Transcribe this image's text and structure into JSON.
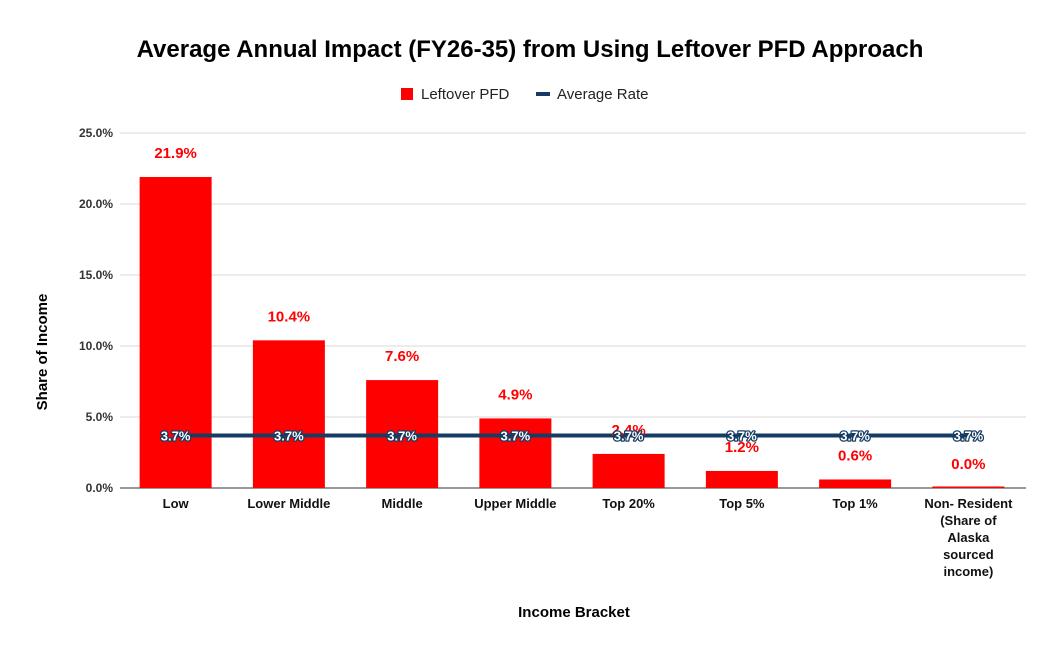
{
  "chart_data": {
    "type": "bar",
    "title": "Average Annual Impact (FY26-35) from Using Leftover PFD Approach",
    "xlabel": "Income Bracket",
    "ylabel": "Share of Income",
    "ylim": [
      0,
      25
    ],
    "yticks": [
      0,
      5,
      10,
      15,
      20,
      25
    ],
    "ytick_labels": [
      "0.0%",
      "5.0%",
      "10.0%",
      "15.0%",
      "20.0%",
      "25.0%"
    ],
    "grid": true,
    "legend_position": "top-center",
    "categories": [
      [
        "Low"
      ],
      [
        "Lower Middle"
      ],
      [
        "Middle"
      ],
      [
        "Upper Middle"
      ],
      [
        "Top 20%"
      ],
      [
        "Top 5%"
      ],
      [
        "Top 1%"
      ],
      [
        "Non- Resident",
        "(Share of",
        "Alaska",
        "sourced",
        "income)"
      ]
    ],
    "series": [
      {
        "name": "Leftover PFD",
        "kind": "bar",
        "color": "#ff0000",
        "values": [
          21.9,
          10.4,
          7.6,
          4.9,
          2.4,
          1.2,
          0.6,
          0.0
        ],
        "labels": [
          "21.9%",
          "10.4%",
          "7.6%",
          "4.9%",
          "2.4%",
          "1.2%",
          "0.6%",
          "0.0%"
        ]
      },
      {
        "name": "Average Rate",
        "kind": "line",
        "color": "#163c63",
        "values": [
          3.7,
          3.7,
          3.7,
          3.7,
          3.7,
          3.7,
          3.7,
          3.7
        ],
        "labels": [
          "3.7%",
          "3.7%",
          "3.7%",
          "3.7%",
          "3.7%",
          "3.7%",
          "3.7%",
          "3.7%"
        ]
      }
    ]
  }
}
